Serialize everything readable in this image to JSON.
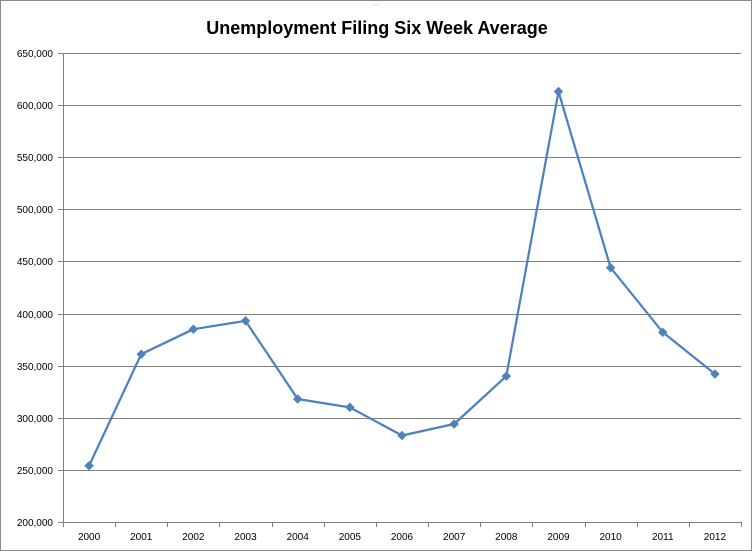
{
  "chart_data": {
    "type": "line",
    "title": "Unemployment Filing Six Week Average",
    "xlabel": "",
    "ylabel": "",
    "categories": [
      "2000",
      "2001",
      "2002",
      "2003",
      "2004",
      "2005",
      "2006",
      "2007",
      "2008",
      "2009",
      "2010",
      "2011",
      "2012"
    ],
    "series": [
      {
        "values": [
          254000,
          361000,
          385000,
          393000,
          318000,
          310000,
          283000,
          294000,
          340000,
          613000,
          444000,
          382000,
          342000
        ]
      }
    ],
    "ylim": [
      200000,
      650000
    ],
    "yticks": [
      {
        "value": 200000,
        "label": "200,000"
      },
      {
        "value": 250000,
        "label": "250,000"
      },
      {
        "value": 300000,
        "label": "300,000"
      },
      {
        "value": 350000,
        "label": "350,000"
      },
      {
        "value": 400000,
        "label": "400,000"
      },
      {
        "value": 450000,
        "label": "450,000"
      },
      {
        "value": 500000,
        "label": "500,000"
      },
      {
        "value": 550000,
        "label": "550,000"
      },
      {
        "value": 600000,
        "label": "600,000"
      },
      {
        "value": 650000,
        "label": "650,000"
      }
    ],
    "grid": true,
    "legend": "none",
    "marker": "diamond",
    "line_color": "#4f81bd"
  }
}
